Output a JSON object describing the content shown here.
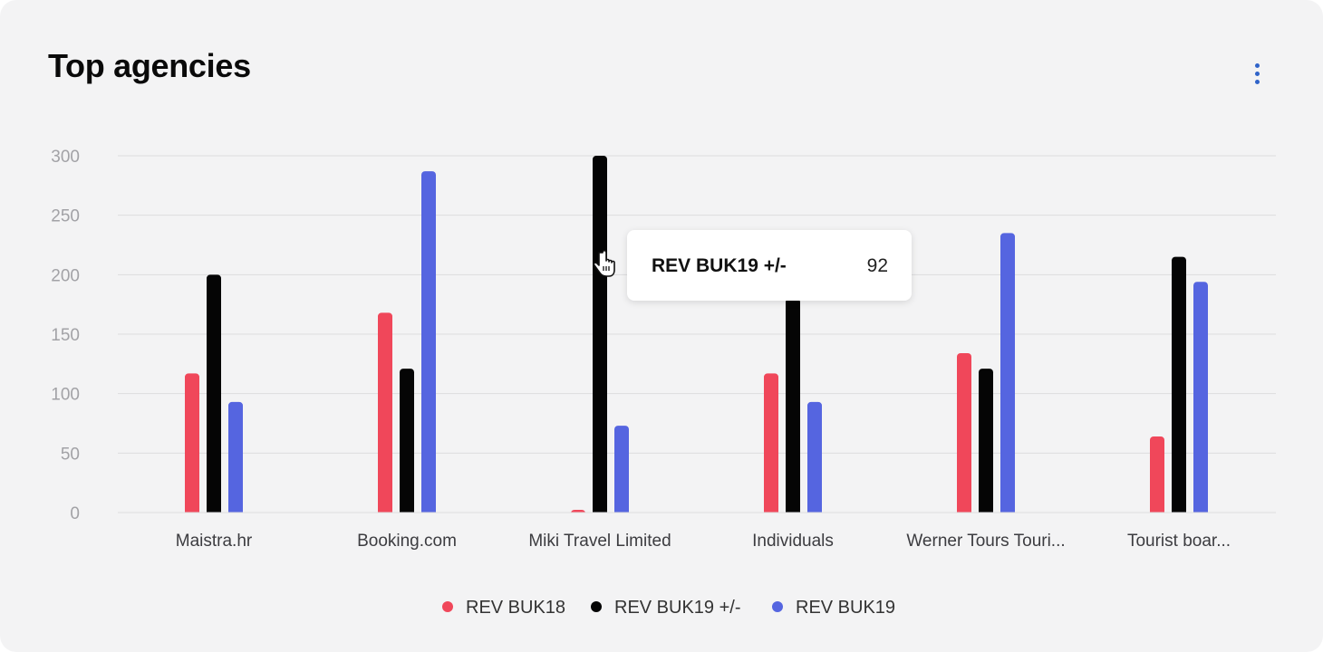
{
  "header": {
    "title": "Top agencies",
    "menu_icon": "more-vertical-icon"
  },
  "colors": {
    "card_bg": "#f3f3f4",
    "accent_menu": "#2f63c9",
    "series": [
      "#f0475a",
      "#050505",
      "#5565e0"
    ]
  },
  "tooltip": {
    "label": "REV BUK19 +/-",
    "value": "92"
  },
  "cursor_icon": "hand-pointer-icon",
  "chart_data": {
    "type": "bar",
    "title": "Top agencies",
    "xlabel": "",
    "ylabel": "",
    "ylim": [
      0,
      300
    ],
    "yticks": [
      "300",
      "250",
      "200",
      "150",
      "100",
      "50",
      "0"
    ],
    "ytick_values": [
      300,
      250,
      200,
      150,
      100,
      50,
      0
    ],
    "grid": true,
    "legend_position": "bottom",
    "categories": [
      "Maistra.hr",
      "Booking.com",
      "Miki Travel Limited",
      "Individuals",
      "Werner Tours Touri...",
      "Tourist boar..."
    ],
    "series": [
      {
        "name": "REV BUK18",
        "color": "#f0475a",
        "values": [
          117,
          168,
          2,
          117,
          134,
          64
        ]
      },
      {
        "name": "REV BUK19 +/-",
        "color": "#050505",
        "values": [
          200,
          121,
          300,
          180,
          121,
          215
        ]
      },
      {
        "name": "REV BUK19",
        "color": "#5565e0",
        "values": [
          93,
          287,
          73,
          93,
          235,
          194
        ]
      }
    ]
  }
}
